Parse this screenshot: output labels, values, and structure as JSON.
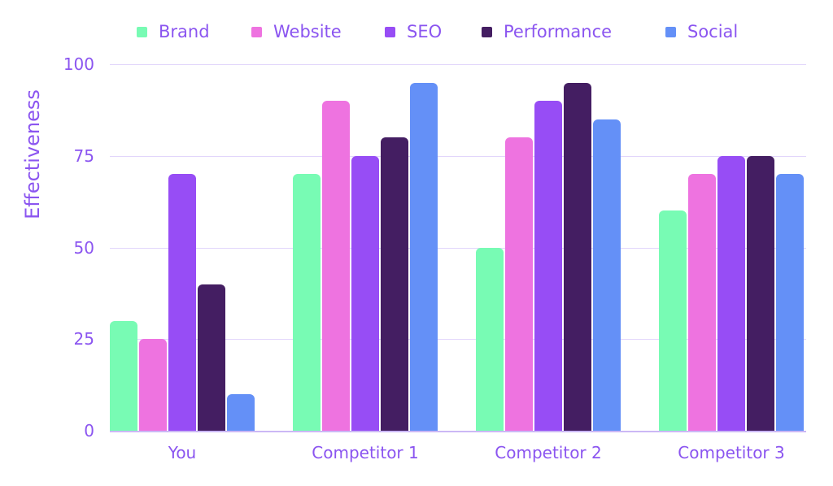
{
  "chart_data": {
    "type": "bar",
    "title": "",
    "xlabel": "",
    "ylabel": "Effectiveness",
    "ylim": [
      0,
      100
    ],
    "yticks": [
      0,
      25,
      50,
      75,
      100
    ],
    "grid": true,
    "legend_position": "top",
    "categories": [
      "You",
      "Competitor 1",
      "Competitor 2",
      "Competitor 3"
    ],
    "series": [
      {
        "name": "Brand",
        "color": "#78fbb4",
        "values": [
          30,
          70,
          50,
          60
        ]
      },
      {
        "name": "Website",
        "color": "#ee73e0",
        "values": [
          25,
          90,
          80,
          70
        ]
      },
      {
        "name": "SEO",
        "color": "#974df5",
        "values": [
          70,
          75,
          90,
          75
        ]
      },
      {
        "name": "Performance",
        "color": "#441e62",
        "values": [
          40,
          80,
          95,
          75
        ]
      },
      {
        "name": "Social",
        "color": "#6490f7",
        "values": [
          10,
          95,
          85,
          70
        ]
      }
    ]
  }
}
